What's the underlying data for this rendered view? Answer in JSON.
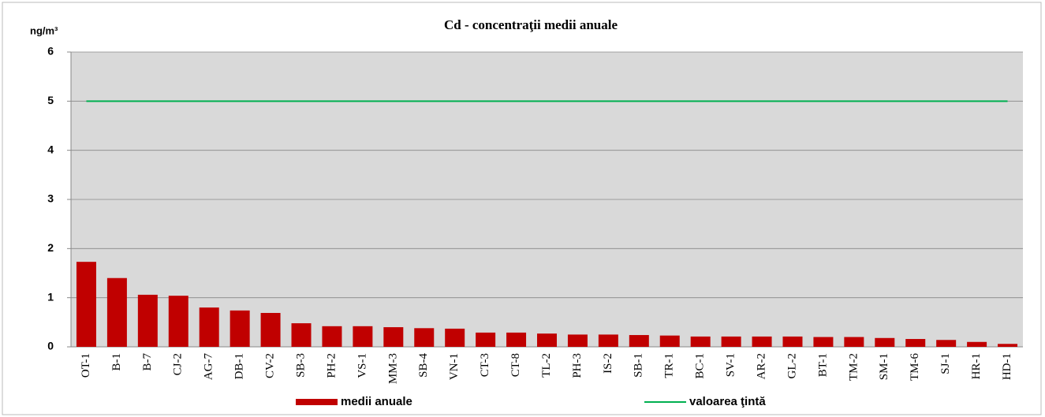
{
  "chart_data": {
    "type": "bar",
    "title": "Cd - concentraţii medii anuale",
    "y_label": "ng/m³",
    "categories": [
      "OT-1",
      "B-1",
      "B-7",
      "CJ-2",
      "AG-7",
      "DB-1",
      "CV-2",
      "SB-3",
      "PH-2",
      "VS-1",
      "MM-3",
      "SB-4",
      "VN-1",
      "CT-3",
      "CT-8",
      "TL-2",
      "PH-3",
      "IS-2",
      "SB-1",
      "TR-1",
      "BC-1",
      "SV-1",
      "AR-2",
      "GL-2",
      "BT-1",
      "TM-2",
      "SM-1",
      "TM-6",
      "SJ-1",
      "HR-1",
      "HD-1"
    ],
    "series": [
      {
        "name": "medii anuale",
        "color": "#c00000",
        "type": "bar",
        "values": [
          1.73,
          1.4,
          1.06,
          1.04,
          0.8,
          0.74,
          0.69,
          0.48,
          0.42,
          0.42,
          0.4,
          0.38,
          0.37,
          0.29,
          0.29,
          0.27,
          0.25,
          0.25,
          0.24,
          0.23,
          0.21,
          0.21,
          0.21,
          0.21,
          0.2,
          0.2,
          0.18,
          0.16,
          0.14,
          0.1,
          0.06
        ]
      },
      {
        "name": "valoarea ţintă",
        "color": "#00b050",
        "type": "line",
        "values": [
          5,
          5,
          5,
          5,
          5,
          5,
          5,
          5,
          5,
          5,
          5,
          5,
          5,
          5,
          5,
          5,
          5,
          5,
          5,
          5,
          5,
          5,
          5,
          5,
          5,
          5,
          5,
          5,
          5,
          5,
          5
        ]
      }
    ],
    "ylim": [
      0,
      6
    ],
    "yticks": [
      0,
      1,
      2,
      3,
      4,
      5,
      6
    ],
    "grid": true,
    "legend": "bottom"
  }
}
